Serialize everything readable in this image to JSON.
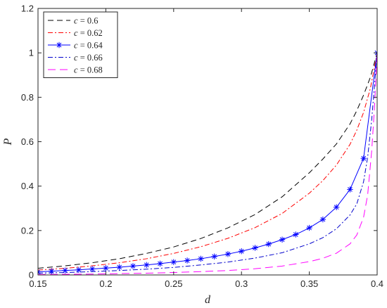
{
  "chart_data": {
    "type": "line",
    "xlabel": "d",
    "ylabel": "P",
    "xlim": [
      0.15,
      0.4
    ],
    "ylim": [
      0,
      1.2
    ],
    "xticks": [
      0.15,
      0.2,
      0.25,
      0.3,
      0.35,
      0.4
    ],
    "xtick_labels": [
      "0.15",
      "0.2",
      "0.25",
      "0.3",
      "0.35",
      "0.4"
    ],
    "yticks": [
      0,
      0.2,
      0.4,
      0.6,
      0.8,
      1,
      1.2
    ],
    "ytick_labels": [
      "0",
      "0.2",
      "0.4",
      "0.6",
      "0.8",
      "1",
      "1.2"
    ],
    "grid": false,
    "legend_position": "top-left",
    "series": [
      {
        "name": "c = 0.6",
        "legend_var": "c",
        "legend_eq": " = ",
        "legend_val": "0.6",
        "color": "#000000",
        "dash": "8,5",
        "marker": "none",
        "x": [
          0.15,
          0.17,
          0.19,
          0.21,
          0.23,
          0.25,
          0.27,
          0.29,
          0.31,
          0.33,
          0.35,
          0.36,
          0.37,
          0.38,
          0.385,
          0.39,
          0.395,
          0.4
        ],
        "y": [
          0.03,
          0.041,
          0.055,
          0.073,
          0.097,
          0.126,
          0.164,
          0.212,
          0.272,
          0.352,
          0.46,
          0.522,
          0.59,
          0.68,
          0.74,
          0.81,
          0.89,
          1.0
        ]
      },
      {
        "name": "c = 0.62",
        "legend_var": "c",
        "legend_eq": " = ",
        "legend_val": "0.62",
        "color": "#ff0000",
        "dash": "7,3,2,3",
        "marker": "none",
        "x": [
          0.15,
          0.17,
          0.19,
          0.21,
          0.23,
          0.25,
          0.27,
          0.29,
          0.31,
          0.33,
          0.35,
          0.36,
          0.37,
          0.38,
          0.385,
          0.39,
          0.395,
          0.4
        ],
        "y": [
          0.022,
          0.03,
          0.041,
          0.055,
          0.073,
          0.097,
          0.127,
          0.165,
          0.213,
          0.277,
          0.368,
          0.425,
          0.495,
          0.588,
          0.652,
          0.732,
          0.84,
          1.0
        ]
      },
      {
        "name": "c = 0.64",
        "legend_var": "c",
        "legend_eq": " = ",
        "legend_val": "0.64",
        "color": "#0000ff",
        "dash": "",
        "marker": "asterisk",
        "x": [
          0.15,
          0.16,
          0.17,
          0.18,
          0.19,
          0.2,
          0.21,
          0.22,
          0.23,
          0.24,
          0.25,
          0.26,
          0.27,
          0.28,
          0.29,
          0.3,
          0.31,
          0.32,
          0.33,
          0.34,
          0.35,
          0.36,
          0.37,
          0.38,
          0.39,
          0.4
        ],
        "y": [
          0.014,
          0.017,
          0.02,
          0.023,
          0.027,
          0.031,
          0.035,
          0.04,
          0.045,
          0.051,
          0.058,
          0.065,
          0.073,
          0.083,
          0.094,
          0.107,
          0.122,
          0.139,
          0.159,
          0.182,
          0.212,
          0.25,
          0.305,
          0.385,
          0.525,
          1.0
        ]
      },
      {
        "name": "c = 0.66",
        "legend_var": "c",
        "legend_eq": " = ",
        "legend_val": "0.66",
        "color": "#0000cc",
        "dash": "7,3,2,3",
        "marker": "none",
        "x": [
          0.15,
          0.17,
          0.19,
          0.21,
          0.23,
          0.25,
          0.27,
          0.29,
          0.31,
          0.33,
          0.35,
          0.36,
          0.37,
          0.38,
          0.385,
          0.39,
          0.393,
          0.396,
          0.4
        ],
        "y": [
          0.008,
          0.011,
          0.015,
          0.02,
          0.026,
          0.034,
          0.045,
          0.058,
          0.076,
          0.1,
          0.14,
          0.168,
          0.208,
          0.27,
          0.32,
          0.42,
          0.53,
          0.7,
          1.0
        ]
      },
      {
        "name": "c = 0.68",
        "legend_var": "c",
        "legend_eq": " = ",
        "legend_val": "0.68",
        "color": "#ff00ff",
        "dash": "11,6",
        "marker": "none",
        "x": [
          0.15,
          0.17,
          0.19,
          0.21,
          0.23,
          0.25,
          0.27,
          0.29,
          0.31,
          0.33,
          0.35,
          0.36,
          0.37,
          0.38,
          0.385,
          0.39,
          0.393,
          0.396,
          0.398,
          0.4
        ],
        "y": [
          0.002,
          0.003,
          0.004,
          0.006,
          0.008,
          0.011,
          0.015,
          0.02,
          0.028,
          0.04,
          0.06,
          0.075,
          0.098,
          0.14,
          0.18,
          0.26,
          0.36,
          0.56,
          0.75,
          1.0
        ]
      }
    ]
  }
}
